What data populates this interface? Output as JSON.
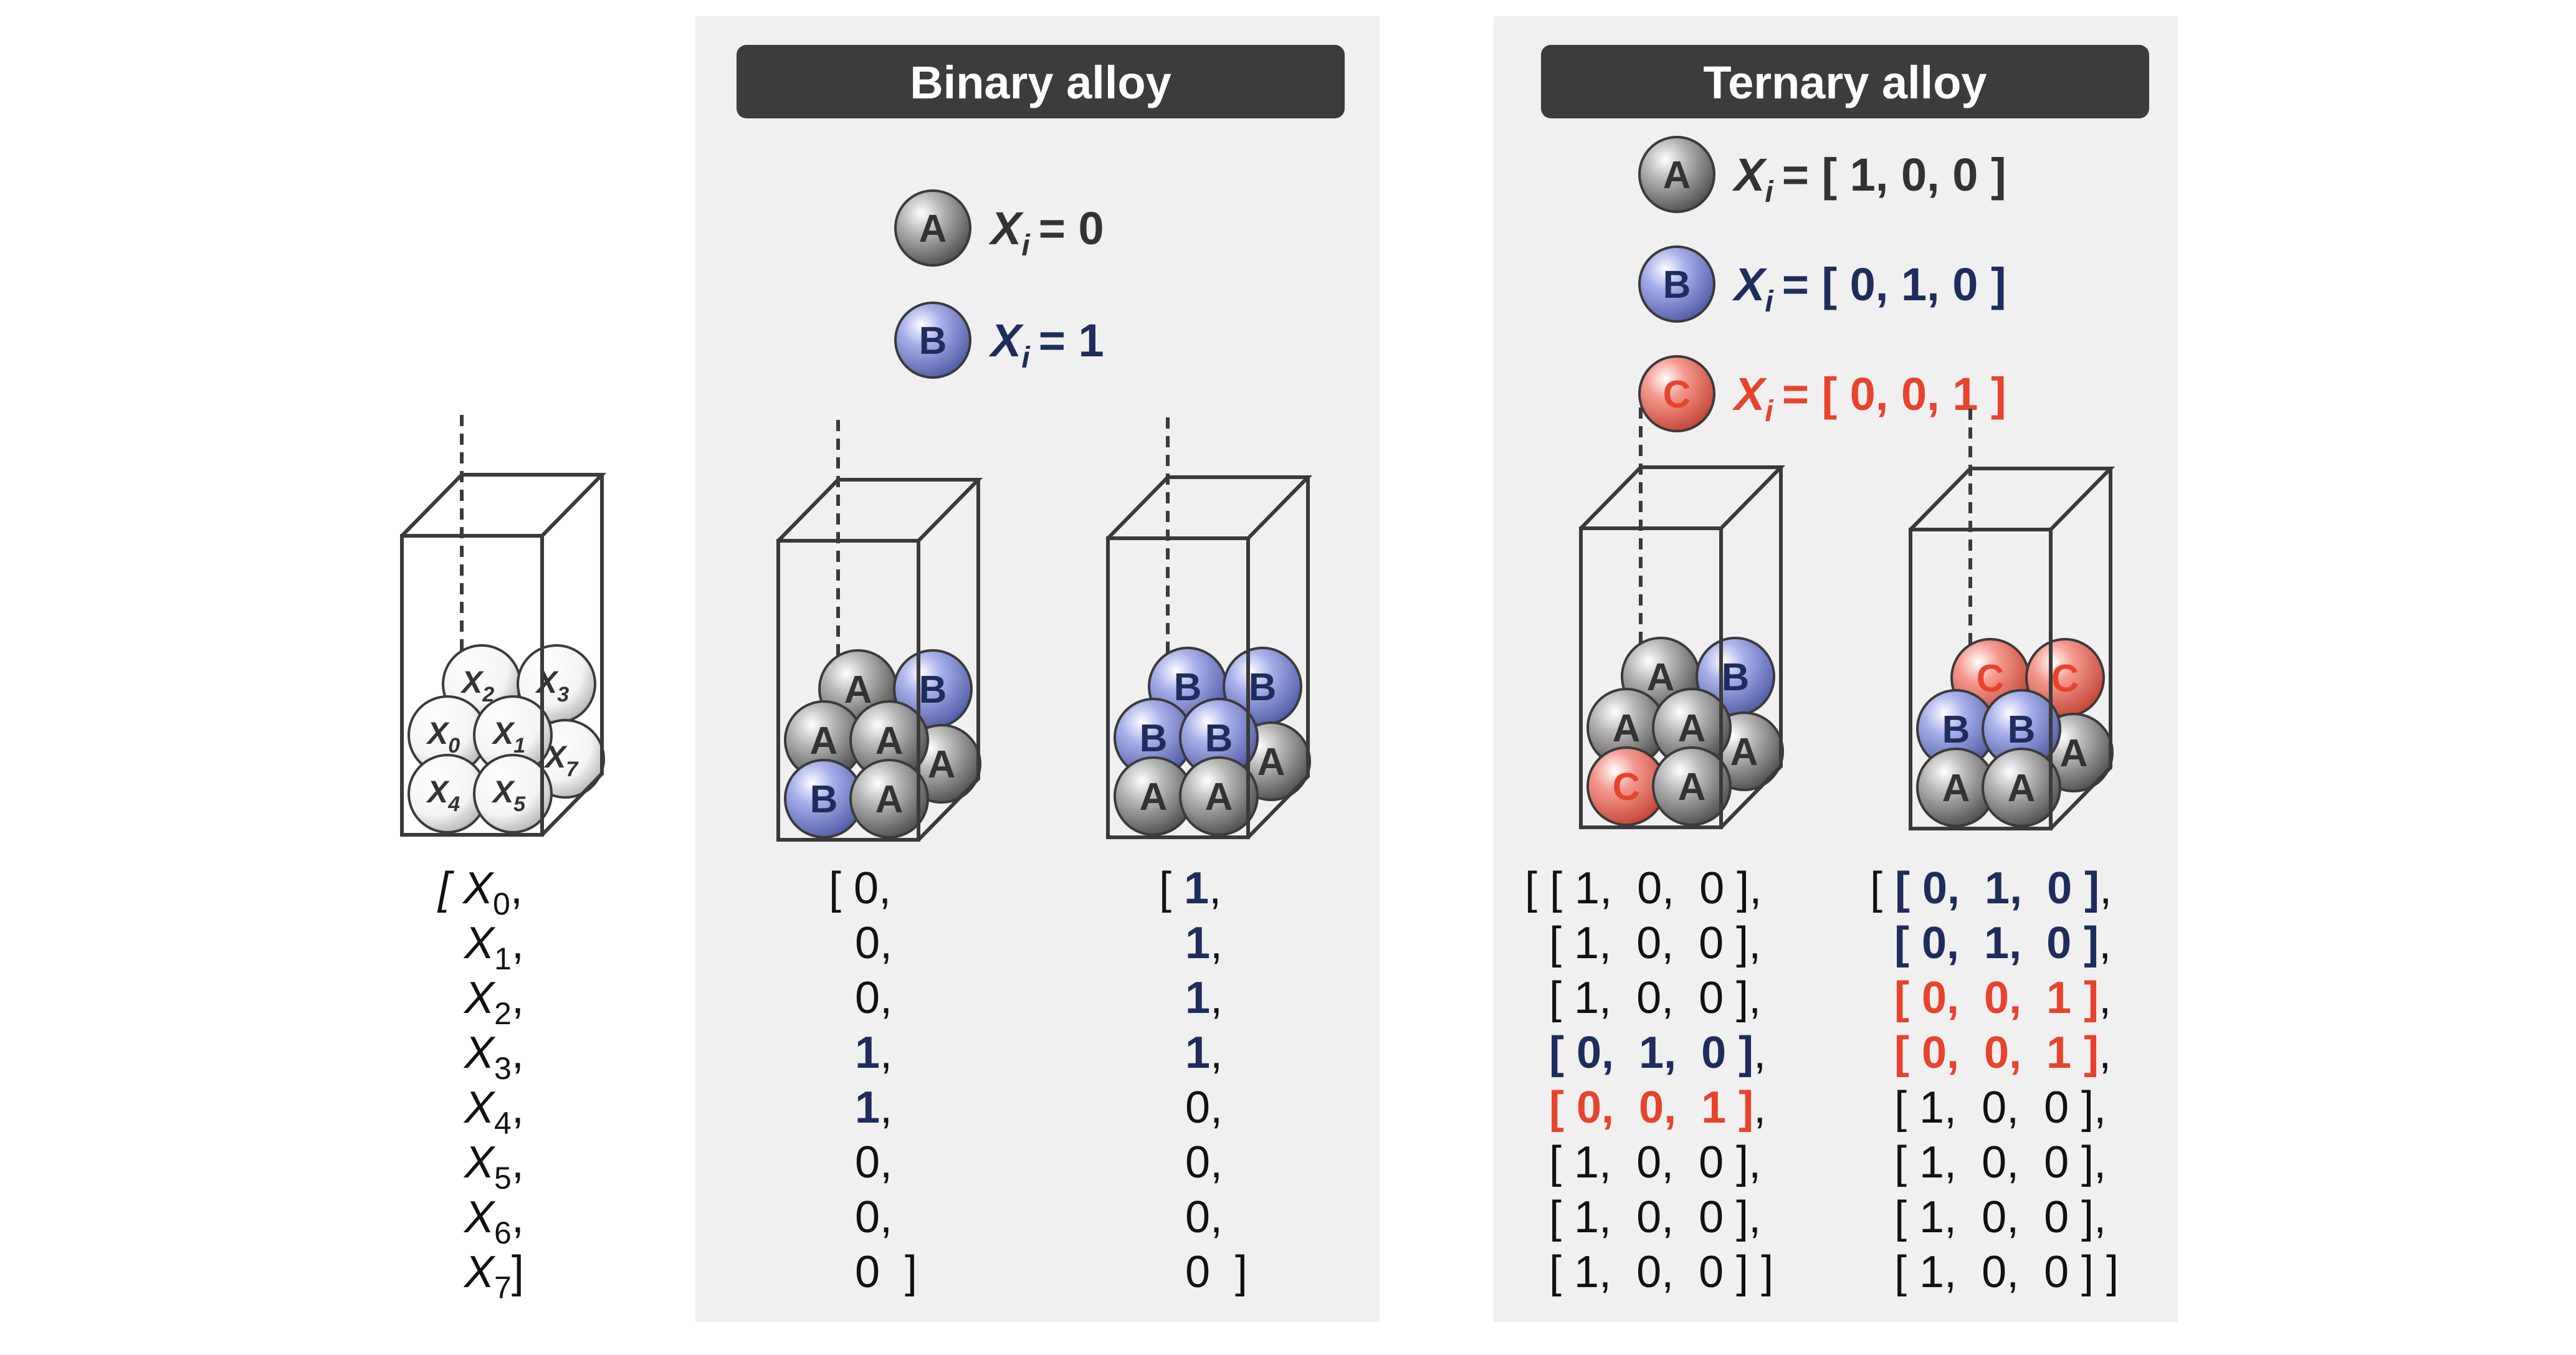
{
  "panels": {
    "binary": {
      "title": "Binary alloy"
    },
    "ternary": {
      "title": "Ternary alloy"
    }
  },
  "colors": {
    "atom_A": "#8a8a8a",
    "atom_B": "#8c98dc",
    "atom_C": "#f0796c",
    "atom_X": "#ffffff",
    "navy": "#1f2d5c",
    "red": "#e8432e",
    "panel_bg": "#f0f0f0",
    "title_bar": "#3c3c3c"
  },
  "binary_legend": [
    {
      "symbol": "A",
      "var": "X",
      "sub": "i",
      "eq": "=  0"
    },
    {
      "symbol": "B",
      "var": "X",
      "sub": "i",
      "eq": "=  1"
    }
  ],
  "ternary_legend": [
    {
      "symbol": "A",
      "var": "X",
      "sub": "i",
      "eq": "= [ 1, 0, 0 ]"
    },
    {
      "symbol": "B",
      "var": "X",
      "sub": "i",
      "eq": "= [ 0, 1, 0 ]"
    },
    {
      "symbol": "C",
      "var": "X",
      "sub": "i",
      "eq": "= [ 0, 0, 1 ]"
    }
  ],
  "cells": [
    {
      "id": "generic",
      "back": [
        {
          "t": "X",
          "s": "2"
        },
        {
          "t": "X",
          "s": "3"
        },
        {
          "t": "X",
          "s": "7"
        }
      ],
      "front": [
        {
          "t": "X",
          "s": "0"
        },
        {
          "t": "X",
          "s": "1"
        },
        {
          "t": "X",
          "s": "4"
        },
        {
          "t": "X",
          "s": "5"
        }
      ]
    },
    {
      "id": "binary1",
      "back": [
        {
          "t": "A"
        },
        {
          "t": "B"
        },
        {
          "t": "A"
        }
      ],
      "front": [
        {
          "t": "A"
        },
        {
          "t": "A"
        },
        {
          "t": "B"
        },
        {
          "t": "A"
        }
      ]
    },
    {
      "id": "binary2",
      "back": [
        {
          "t": "B"
        },
        {
          "t": "B"
        },
        {
          "t": "A"
        }
      ],
      "front": [
        {
          "t": "B"
        },
        {
          "t": "B"
        },
        {
          "t": "A"
        },
        {
          "t": "A"
        }
      ]
    },
    {
      "id": "ternary1",
      "back": [
        {
          "t": "A"
        },
        {
          "t": "B"
        },
        {
          "t": "A"
        }
      ],
      "front": [
        {
          "t": "A"
        },
        {
          "t": "A"
        },
        {
          "t": "C"
        },
        {
          "t": "A"
        }
      ]
    },
    {
      "id": "ternary2",
      "back": [
        {
          "t": "C"
        },
        {
          "t": "C"
        },
        {
          "t": "A"
        }
      ],
      "front": [
        {
          "t": "B"
        },
        {
          "t": "B"
        },
        {
          "t": "A"
        },
        {
          "t": "A"
        }
      ]
    }
  ],
  "vectors": {
    "generic": [
      {
        "text": "[ X",
        "sub": "0",
        ",": ","
      },
      {
        "text": "X",
        "sub": "1",
        ",": ","
      },
      {
        "text": "X",
        "sub": "2",
        ",": ","
      },
      {
        "text": "X",
        "sub": "3",
        ",": ","
      },
      {
        "text": "X",
        "sub": "4",
        ",": ","
      },
      {
        "text": "X",
        "sub": "5",
        ",": ","
      },
      {
        "text": "X",
        "sub": "6",
        ",": ","
      },
      {
        "text": "X",
        "sub": "7",
        ",": "]"
      }
    ],
    "binary1": [
      {
        "pre": "[ ",
        "val": "0",
        "post": ",",
        "c": "k"
      },
      {
        "pre": "",
        "val": "0",
        "post": ",",
        "c": "k"
      },
      {
        "pre": "",
        "val": "0",
        "post": ",",
        "c": "k"
      },
      {
        "pre": "",
        "val": "1",
        "post": ",",
        "c": "b"
      },
      {
        "pre": "",
        "val": "1",
        "post": ",",
        "c": "b"
      },
      {
        "pre": "",
        "val": "0",
        "post": ",",
        "c": "k"
      },
      {
        "pre": "",
        "val": "0",
        "post": ",",
        "c": "k"
      },
      {
        "pre": "",
        "val": "0",
        "post": "  ]",
        "c": "k"
      }
    ],
    "binary2": [
      {
        "pre": "[ ",
        "val": "1",
        "post": ",",
        "c": "b"
      },
      {
        "pre": "",
        "val": "1",
        "post": ",",
        "c": "b"
      },
      {
        "pre": "",
        "val": "1",
        "post": ",",
        "c": "b"
      },
      {
        "pre": "",
        "val": "1",
        "post": ",",
        "c": "b"
      },
      {
        "pre": "",
        "val": "0",
        "post": ",",
        "c": "k"
      },
      {
        "pre": "",
        "val": "0",
        "post": ",",
        "c": "k"
      },
      {
        "pre": "",
        "val": "0",
        "post": ",",
        "c": "k"
      },
      {
        "pre": "",
        "val": "0",
        "post": "  ]",
        "c": "k"
      }
    ],
    "ternary1": [
      {
        "pre": "[ ",
        "val": "[ 1,  0,  0 ]",
        "post": ",",
        "c": "k"
      },
      {
        "pre": "",
        "val": "[ 1,  0,  0 ]",
        "post": ",",
        "c": "k"
      },
      {
        "pre": "",
        "val": "[ 1,  0,  0 ]",
        "post": ",",
        "c": "k"
      },
      {
        "pre": "",
        "val": "[ 0,  1,  0 ]",
        "post": ",",
        "c": "b"
      },
      {
        "pre": "",
        "val": "[ 0,  0,  1 ]",
        "post": ",",
        "c": "r"
      },
      {
        "pre": "",
        "val": "[ 1,  0,  0 ]",
        "post": ",",
        "c": "k"
      },
      {
        "pre": "",
        "val": "[ 1,  0,  0 ]",
        "post": ",",
        "c": "k"
      },
      {
        "pre": "",
        "val": "[ 1,  0,  0 ]",
        "post": " ]",
        "c": "k"
      }
    ],
    "ternary2": [
      {
        "pre": "[ ",
        "val": "[ 0,  1,  0 ]",
        "post": ",",
        "c": "b"
      },
      {
        "pre": "",
        "val": "[ 0,  1,  0 ]",
        "post": ",",
        "c": "b"
      },
      {
        "pre": "",
        "val": "[ 0,  0,  1 ]",
        "post": ",",
        "c": "r"
      },
      {
        "pre": "",
        "val": "[ 0,  0,  1 ]",
        "post": ",",
        "c": "r"
      },
      {
        "pre": "",
        "val": "[ 1,  0,  0 ]",
        "post": ",",
        "c": "k"
      },
      {
        "pre": "",
        "val": "[ 1,  0,  0 ]",
        "post": ",",
        "c": "k"
      },
      {
        "pre": "",
        "val": "[ 1,  0,  0 ]",
        "post": ",",
        "c": "k"
      },
      {
        "pre": "",
        "val": "[ 1,  0,  0 ]",
        "post": " ]",
        "c": "k"
      }
    ]
  }
}
